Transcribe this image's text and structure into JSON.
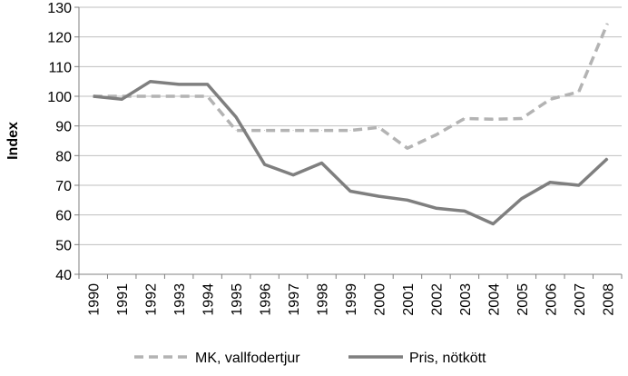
{
  "chart_data": {
    "type": "line",
    "ylabel": "Index",
    "xlabel": "",
    "ylim": [
      40,
      130
    ],
    "yticks": [
      40,
      50,
      60,
      70,
      80,
      90,
      100,
      110,
      120,
      130
    ],
    "grid": "horizontal",
    "legend_position": "bottom",
    "categories": [
      "1990",
      "1991",
      "1992",
      "1993",
      "1994",
      "1995",
      "1996",
      "1997",
      "1998",
      "1999",
      "2000",
      "2001",
      "2002",
      "2003",
      "2004",
      "2005",
      "2006",
      "2007",
      "2008"
    ],
    "series": [
      {
        "name": "MK, vallfodertjur",
        "style": "dashed",
        "color": "#b3b3b3",
        "values": [
          100,
          100,
          100,
          100,
          100,
          88.5,
          88.5,
          88.5,
          88.5,
          88.5,
          89.5,
          82.5,
          87,
          92.5,
          92.3,
          92.5,
          99,
          101.5,
          124.5
        ]
      },
      {
        "name": "Pris, nötkött",
        "style": "solid",
        "color": "#7f7f7f",
        "values": [
          100,
          99,
          105,
          104,
          104,
          93,
          77,
          73.5,
          77.5,
          68,
          66.3,
          65,
          62.3,
          61.3,
          57,
          65.5,
          71,
          70,
          79
        ]
      }
    ]
  }
}
